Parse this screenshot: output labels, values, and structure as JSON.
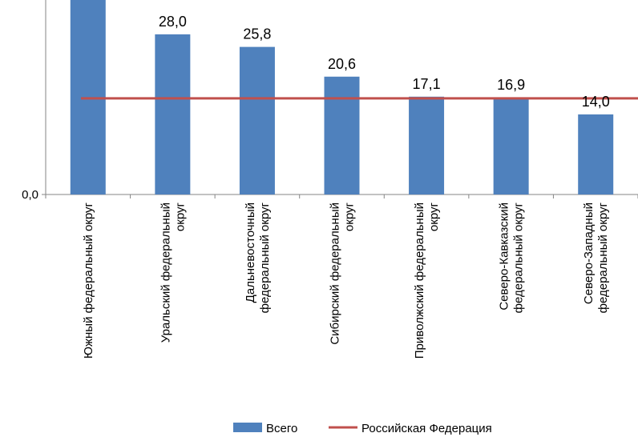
{
  "chart_data": {
    "type": "bar",
    "categories": [
      [
        "Южный федеральный округ"
      ],
      [
        "Уральский федеральный",
        "округ"
      ],
      [
        "Дальневосточный",
        "федеральный округ"
      ],
      [
        "Сибирский федеральный",
        "округ"
      ],
      [
        "Приволжский федеральный",
        "округ"
      ],
      [
        "Северо-Кавказский",
        "федеральный округ"
      ],
      [
        "Северо-Западный",
        "федеральный округ"
      ]
    ],
    "series": [
      {
        "name": "Всего",
        "values": [
          34.0,
          28.0,
          25.8,
          20.6,
          17.1,
          16.9,
          14.0
        ],
        "data_labels": [
          "",
          "28,0",
          "25,8",
          "20,6",
          "17,1",
          "16,9",
          "14,0"
        ],
        "color": "#4F81BD"
      }
    ],
    "reference_line": {
      "name": "Российская Федерация",
      "value": 16.8,
      "color": "#C0504D"
    },
    "y_tick_labels": [
      {
        "value": 0,
        "label": "0,0"
      }
    ],
    "ylim": [
      0,
      34
    ],
    "grid": false,
    "legend_position": "bottom"
  }
}
